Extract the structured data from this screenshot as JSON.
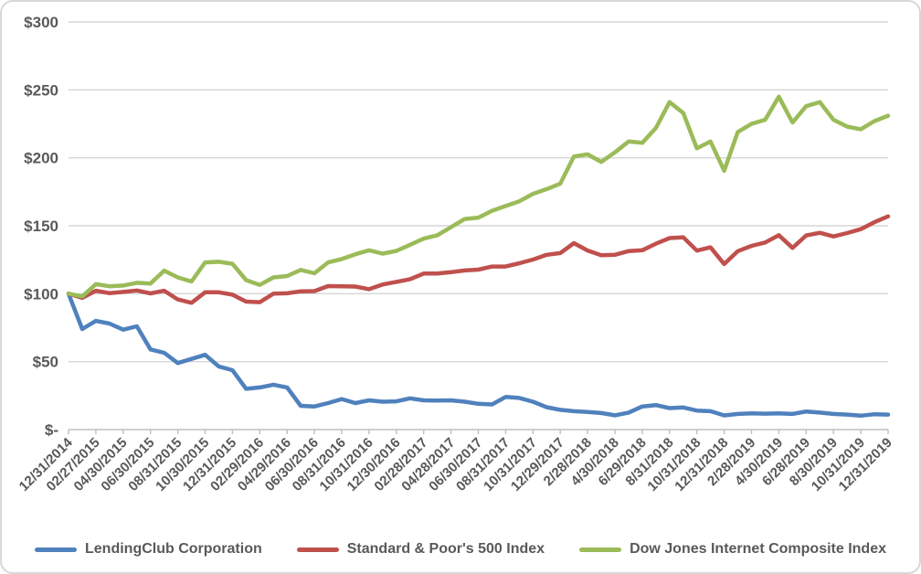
{
  "chart_data": {
    "type": "line",
    "title": "",
    "xlabel": "",
    "ylabel": "",
    "ylim": [
      0,
      300
    ],
    "grid": true,
    "legend_position": "bottom",
    "y_axis": {
      "tick_labels": [
        "$300",
        "$250",
        "$200",
        "$150",
        "$100",
        "$50",
        "$-"
      ],
      "tick_values": [
        300,
        250,
        200,
        150,
        100,
        50,
        0
      ]
    },
    "x_axis": {
      "tick_labels": [
        "12/31/2014",
        "02/27/2015",
        "04/30/2015",
        "06/30/2015",
        "08/31/2015",
        "10/30/2015",
        "12/31/2015",
        "02/29/2016",
        "04/29/2016",
        "06/30/2016",
        "08/31/2016",
        "10/31/2016",
        "12/30/2016",
        "02/28/2017",
        "04/28/2017",
        "06/30/2017",
        "08/31/2017",
        "10/31/2017",
        "12/29/2017",
        "2/28/2018",
        "4/30/2018",
        "6/29/2018",
        "8/31/2018",
        "10/31/2018",
        "12/31/2018",
        "2/28/2019",
        "4/30/2019",
        "6/28/2019",
        "8/30/2019",
        "10/31/2019",
        "12/31/2019"
      ],
      "months_per_tick": 2,
      "total_points": 61
    },
    "series": [
      {
        "name": "LendingClub Corporation",
        "color": "#4F81BD",
        "values": [
          100,
          74,
          80,
          78,
          73.5,
          76,
          59,
          56.5,
          49,
          52,
          55,
          46.5,
          43.7,
          30,
          31,
          33,
          31,
          17.5,
          17,
          19.5,
          22.5,
          19.5,
          21.5,
          20.5,
          20.8,
          23,
          21.5,
          21.3,
          21.5,
          20.5,
          19,
          18.5,
          24,
          23.3,
          20.5,
          16.5,
          14.5,
          13.5,
          13,
          12.2,
          10.5,
          12.5,
          17,
          18,
          15.8,
          16.3,
          14,
          13.5,
          10.4,
          11.5,
          12,
          11.7,
          12,
          11.5,
          13.3,
          12.5,
          11.5,
          11,
          10.2,
          11.3,
          11
        ]
      },
      {
        "name": "Standard & Poor's 500 Index",
        "color": "#C0504D",
        "values": [
          100,
          96.9,
          102.2,
          100.4,
          101.3,
          102.4,
          100.2,
          102.2,
          95.8,
          93.3,
          101,
          101,
          99.3,
          94.2,
          93.8,
          100,
          100.3,
          101.8,
          101.9,
          105.6,
          105.4,
          105.3,
          103.3,
          106.8,
          108.7,
          110.7,
          114.8,
          114.8,
          115.8,
          117.1,
          117.7,
          120,
          120,
          122.4,
          125.1,
          128.6,
          129.9,
          137.2,
          131.8,
          128.3,
          128.6,
          131.4,
          132,
          136.8,
          140.9,
          141.5,
          131.7,
          134.1,
          121.8,
          131.3,
          135.2,
          137.7,
          143.1,
          133.7,
          142.9,
          144.8,
          142.1,
          144.6,
          147.5,
          152.6,
          156.9
        ]
      },
      {
        "name": "Dow Jones Internet Composite Index",
        "color": "#9BBB59",
        "values": [
          100,
          98,
          107,
          105.5,
          106,
          108,
          107.5,
          117,
          112,
          109,
          123,
          123.5,
          122,
          110,
          106.5,
          112,
          113,
          117.5,
          115,
          123,
          125.5,
          129,
          132,
          129.5,
          131.5,
          136,
          140.5,
          143,
          149,
          155,
          156,
          161,
          164.5,
          168,
          173.5,
          177,
          181,
          201,
          202.5,
          197,
          204,
          212,
          211,
          222,
          241,
          233,
          207,
          212,
          190.5,
          219,
          225,
          228,
          245,
          226,
          238,
          241,
          228,
          223,
          221,
          227,
          231
        ]
      }
    ],
    "style": {
      "grid_color": "#D6D6D6",
      "axis_color": "#BFBFBF",
      "text_color": "#595959",
      "line_width": 4.5
    }
  }
}
